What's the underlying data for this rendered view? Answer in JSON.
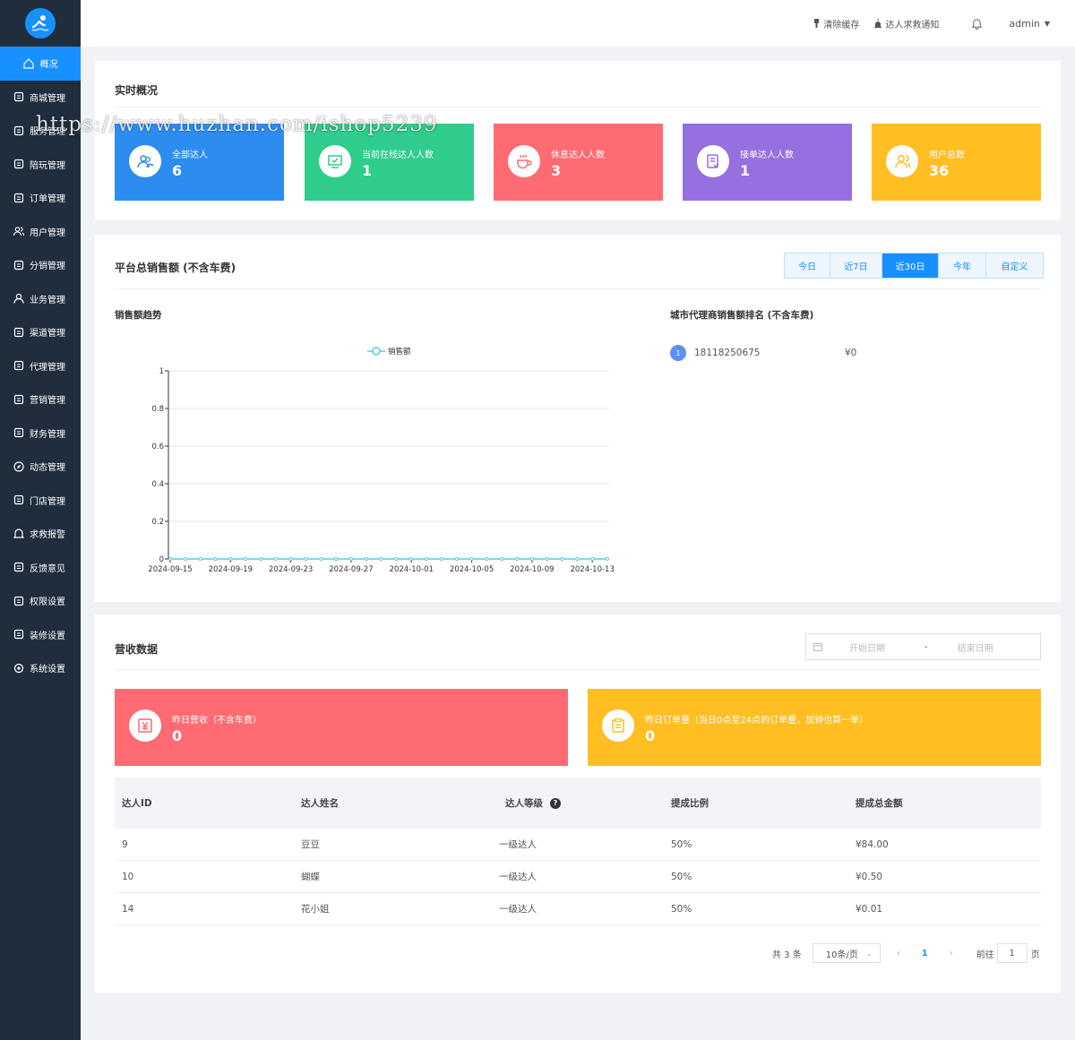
{
  "sidebar": {
    "items": [
      {
        "label": "概况",
        "icon": "home-icon"
      },
      {
        "label": "商城管理",
        "icon": "shop-icon"
      },
      {
        "label": "服务管理",
        "icon": "service-icon"
      },
      {
        "label": "陪玩管理",
        "icon": "gamepad-icon"
      },
      {
        "label": "订单管理",
        "icon": "order-icon"
      },
      {
        "label": "用户管理",
        "icon": "users-icon"
      },
      {
        "label": "分销管理",
        "icon": "sitemap-icon"
      },
      {
        "label": "业务管理",
        "icon": "user-icon"
      },
      {
        "label": "渠道管理",
        "icon": "recycle-icon"
      },
      {
        "label": "代理管理",
        "icon": "agent-icon"
      },
      {
        "label": "营销管理",
        "icon": "marketing-icon"
      },
      {
        "label": "财务管理",
        "icon": "money-bag-icon"
      },
      {
        "label": "动态管理",
        "icon": "compass-icon"
      },
      {
        "label": "门店管理",
        "icon": "store-icon"
      },
      {
        "label": "求救报警",
        "icon": "bell-icon"
      },
      {
        "label": "反馈意见",
        "icon": "feedback-icon"
      },
      {
        "label": "权限设置",
        "icon": "permission-icon"
      },
      {
        "label": "装修设置",
        "icon": "palette-icon"
      },
      {
        "label": "系统设置",
        "icon": "gear-icon"
      }
    ]
  },
  "topbar": {
    "clear_cache": "清除缓存",
    "sos_notice": "达人求救通知",
    "user": "admin"
  },
  "overview": {
    "title": "实时概况",
    "stats": [
      {
        "label": "全部达人",
        "value": "6",
        "color": "#2d8cf0"
      },
      {
        "label": "当前在线达人人数",
        "value": "1",
        "color": "#2fcc8b"
      },
      {
        "label": "休息达人人数",
        "value": "3",
        "color": "#ff6b72"
      },
      {
        "label": "接单达人人数",
        "value": "1",
        "color": "#9570de"
      },
      {
        "label": "用户总数",
        "value": "36",
        "color": "#ffbe22"
      }
    ]
  },
  "sales": {
    "title": "平台总销售额 (不含车费)",
    "ranges": [
      "今日",
      "近7日",
      "近30日",
      "今年",
      "自定义"
    ],
    "trend_title": "销售额趋势",
    "rank_title": "城市代理商销售额排名 (不含车费)",
    "rank": [
      {
        "no": "1",
        "name": "18118250675",
        "amount": "¥0"
      }
    ]
  },
  "chart_data": {
    "type": "line",
    "title": "",
    "xlabel": "",
    "ylabel": "",
    "x": [
      "2024-09-15",
      "2024-09-16",
      "2024-09-17",
      "2024-09-18",
      "2024-09-19",
      "2024-09-20",
      "2024-09-21",
      "2024-09-22",
      "2024-09-23",
      "2024-09-24",
      "2024-09-25",
      "2024-09-26",
      "2024-09-27",
      "2024-09-28",
      "2024-09-29",
      "2024-09-30",
      "2024-10-01",
      "2024-10-02",
      "2024-10-03",
      "2024-10-04",
      "2024-10-05",
      "2024-10-06",
      "2024-10-07",
      "2024-10-08",
      "2024-10-09",
      "2024-10-10",
      "2024-10-11",
      "2024-10-12",
      "2024-10-13",
      "2024-10-14"
    ],
    "x_tick_labels": [
      "2024-09-15",
      "2024-09-19",
      "2024-09-23",
      "2024-09-27",
      "2024-10-01",
      "2024-10-05",
      "2024-10-09",
      "2024-10-13"
    ],
    "series": [
      {
        "name": "销售额",
        "values": [
          0,
          0,
          0,
          0,
          0,
          0,
          0,
          0,
          0,
          0,
          0,
          0,
          0,
          0,
          0,
          0,
          0,
          0,
          0,
          0,
          0,
          0,
          0,
          0,
          0,
          0,
          0,
          0,
          0,
          0
        ],
        "color": "#4fd1e8"
      }
    ],
    "ylim": [
      0,
      1
    ],
    "y_ticks": [
      "0",
      "0.2",
      "0.4",
      "0.6",
      "0.8",
      "1"
    ],
    "legend": "top-center",
    "grid": true
  },
  "revenue": {
    "title": "营收数据",
    "date_start": "开始日期",
    "date_sep": "-",
    "date_end": "结束日期",
    "cards": [
      {
        "label": "昨日营收（不含车费）",
        "value": "0",
        "color": "#ff6b72"
      },
      {
        "label": "昨日订单量（当日0点至24点的订单量，加钟也算一单）",
        "value": "0",
        "color": "#ffbe22"
      }
    ],
    "columns": [
      "达人ID",
      "达人姓名",
      "达人等级",
      "提成比例",
      "提成总金额"
    ],
    "rows": [
      [
        "9",
        "豆豆",
        "一级达人",
        "50%",
        "¥84.00"
      ],
      [
        "10",
        "蝴蝶",
        "一级达人",
        "50%",
        "¥0.50"
      ],
      [
        "14",
        "花小姐",
        "一级达人",
        "50%",
        "¥0.01"
      ]
    ],
    "pager": {
      "total": "共 3 条",
      "page_size": "10条/页",
      "current": "1",
      "goto_label": "前往",
      "goto_value": "1",
      "page_unit": "页"
    }
  },
  "watermark": "https://www.huzhan.com/ishop5239"
}
